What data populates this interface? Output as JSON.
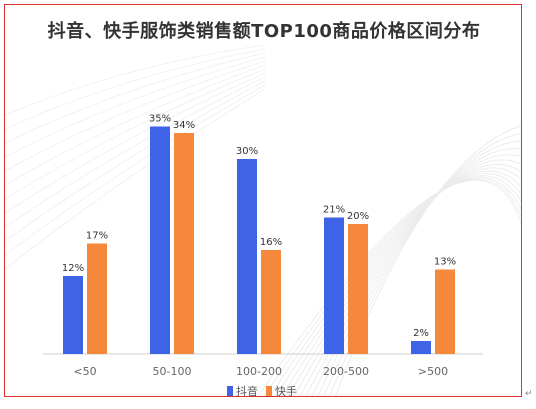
{
  "chart_data": {
    "type": "bar",
    "title": "抖音、快手服饰类销售额TOP100商品价格区间分布",
    "categories": [
      "<50",
      "50-100",
      "100-200",
      "200-500",
      ">500"
    ],
    "series": [
      {
        "name": "抖音",
        "color": "#3e63e6",
        "values": [
          12,
          35,
          30,
          21,
          2
        ],
        "labels": [
          "12%",
          "35%",
          "30%",
          "21%",
          "2%"
        ]
      },
      {
        "name": "快手",
        "color": "#f5883a",
        "values": [
          17,
          34,
          16,
          20,
          13
        ],
        "labels": [
          "17%",
          "34%",
          "16%",
          "20%",
          "13%"
        ]
      }
    ],
    "xlabel": "",
    "ylabel": "",
    "ylim": [
      0,
      40
    ],
    "grid": false,
    "legend": "bottom"
  },
  "return_mark": "↵"
}
